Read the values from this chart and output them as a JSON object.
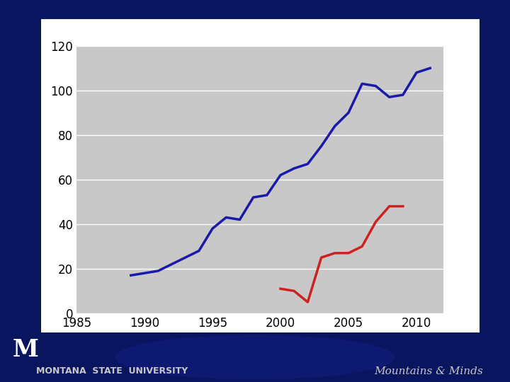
{
  "background_outer": "#0a1560",
  "plot_bg": "#c8c8c8",
  "xlim": [
    1985,
    2012
  ],
  "ylim": [
    0,
    120
  ],
  "xticks": [
    1985,
    1990,
    1995,
    2000,
    2005,
    2010
  ],
  "yticks": [
    0,
    20,
    40,
    60,
    80,
    100,
    120
  ],
  "blue_x": [
    1989,
    1990,
    1991,
    1992,
    1993,
    1994,
    1995,
    1996,
    1997,
    1998,
    1999,
    2000,
    2001,
    2002,
    2003,
    2004,
    2005,
    2006,
    2007,
    2008,
    2009,
    2010,
    2011
  ],
  "blue_y": [
    17,
    18,
    19,
    22,
    25,
    28,
    38,
    43,
    42,
    52,
    53,
    62,
    65,
    67,
    75,
    84,
    90,
    103,
    102,
    97,
    98,
    108,
    110
  ],
  "red_x": [
    2000,
    2001,
    2002,
    2003,
    2004,
    2005,
    2006,
    2007,
    2008,
    2009
  ],
  "red_y": [
    11,
    10,
    5,
    25,
    27,
    27,
    30,
    41,
    48,
    48
  ],
  "blue_color": "#1a1aaa",
  "red_color": "#cc2222",
  "line_width": 2.5,
  "footer_left": "MONTANA  STATE  UNIVERSITY",
  "footer_right": "Mountains & Minds",
  "footer_color": "#c8c8c8"
}
